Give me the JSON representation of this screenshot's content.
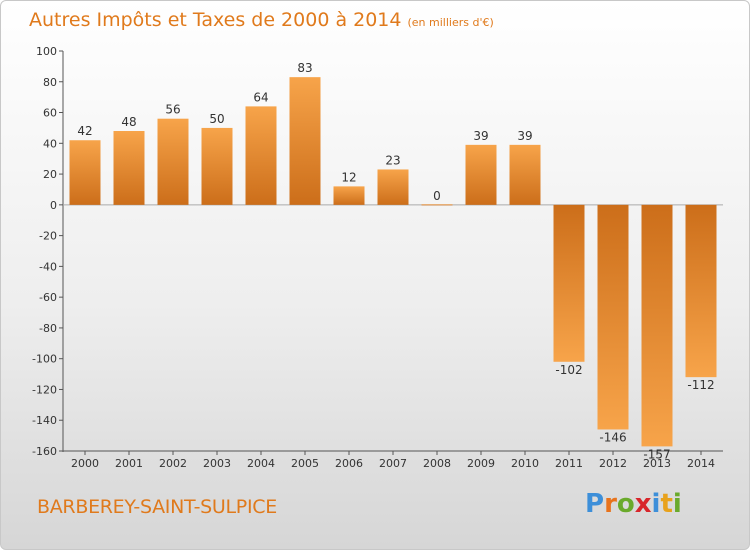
{
  "header": {
    "title": "Autres Impôts et Taxes de 2000 à 2014",
    "subtitle": "(en milliers d'€)"
  },
  "footer": {
    "commune": "BARBEREY-SAINT-SULPICE",
    "logo_letters": [
      "P",
      "r",
      "o",
      "x",
      "i",
      "t",
      "i"
    ],
    "logo_colors": [
      "#3d8fd9",
      "#e8731c",
      "#6aaa2b",
      "#d8262b",
      "#3d8fd9",
      "#e8a21c",
      "#6aaa2b"
    ]
  },
  "chart_data": {
    "type": "bar",
    "title": "Autres Impôts et Taxes de 2000 à 2014",
    "subtitle": "(en milliers d'€)",
    "xlabel": "",
    "ylabel": "",
    "categories": [
      "2000",
      "2001",
      "2002",
      "2003",
      "2004",
      "2005",
      "2006",
      "2007",
      "2008",
      "2009",
      "2010",
      "2011",
      "2012",
      "2013",
      "2014"
    ],
    "values": [
      42,
      48,
      56,
      50,
      64,
      83,
      12,
      23,
      0,
      39,
      39,
      -102,
      -146,
      -157,
      -112
    ],
    "value_labels": [
      "42",
      "48",
      "56",
      "50",
      "64",
      "83",
      "12",
      "23",
      "0",
      "39",
      "39",
      "-102",
      "-146",
      "-157",
      "-112"
    ],
    "yticks": [
      100,
      80,
      60,
      40,
      20,
      0,
      -20,
      -40,
      -60,
      -80,
      -100,
      -120,
      -140,
      -160
    ],
    "ylim": [
      -160,
      100
    ],
    "grid": false,
    "legend": "none",
    "bar_color_light": "#f7a44a",
    "bar_color_dark": "#cc6e1a",
    "text_color": "#e07a1c"
  }
}
